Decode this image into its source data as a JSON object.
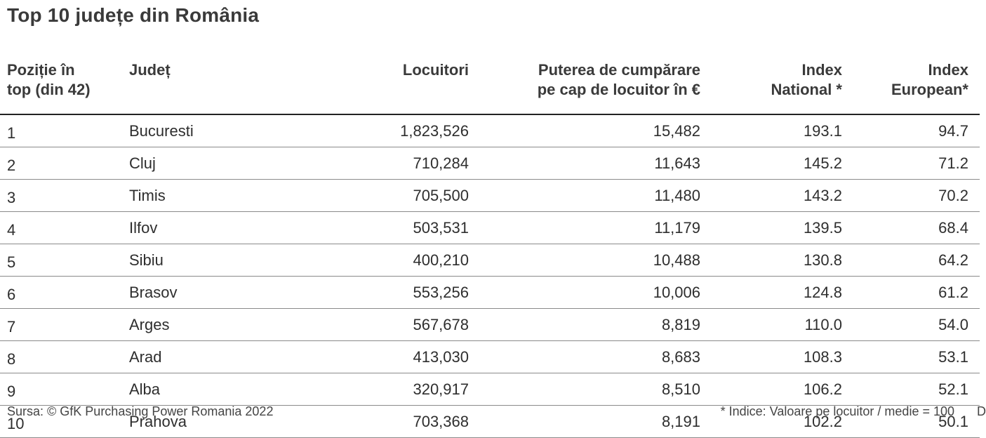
{
  "title": "Top 10 județe din România",
  "table": {
    "headers": [
      [
        "Poziție în",
        "top (din 42)"
      ],
      [
        "Județ",
        ""
      ],
      [
        "Locuitori",
        ""
      ],
      [
        "Puterea de cumpărare",
        "pe cap de locuitor în €"
      ],
      [
        "Index",
        "National *"
      ],
      [
        "Index",
        "European*"
      ]
    ],
    "rows": [
      [
        "1",
        "Bucuresti",
        "1,823,526",
        "15,482",
        "193.1",
        "94.7"
      ],
      [
        "2",
        "Cluj",
        "710,284",
        "11,643",
        "145.2",
        "71.2"
      ],
      [
        "3",
        "Timis",
        "705,500",
        "11,480",
        "143.2",
        "70.2"
      ],
      [
        "4",
        "Ilfov",
        "503,531",
        "11,179",
        "139.5",
        "68.4"
      ],
      [
        "5",
        "Sibiu",
        "400,210",
        "10,488",
        "130.8",
        "64.2"
      ],
      [
        "6",
        "Brasov",
        "553,256",
        "10,006",
        "124.8",
        "61.2"
      ],
      [
        "7",
        "Arges",
        "567,678",
        "8,819",
        "110.0",
        "54.0"
      ],
      [
        "8",
        "Arad",
        "413,030",
        "8,683",
        "108.3",
        "53.1"
      ],
      [
        "9",
        "Alba",
        "320,917",
        "8,510",
        "106.2",
        "52.1"
      ],
      [
        "10",
        "Prahova",
        "703,368",
        "8,191",
        "102.2",
        "50.1"
      ]
    ]
  },
  "footer": {
    "source": "Sursa: © GfK Purchasing Power Romania 2022",
    "note": "* Indice: Valoare pe locuitor / medie = 100",
    "edge_glyph": "D"
  }
}
